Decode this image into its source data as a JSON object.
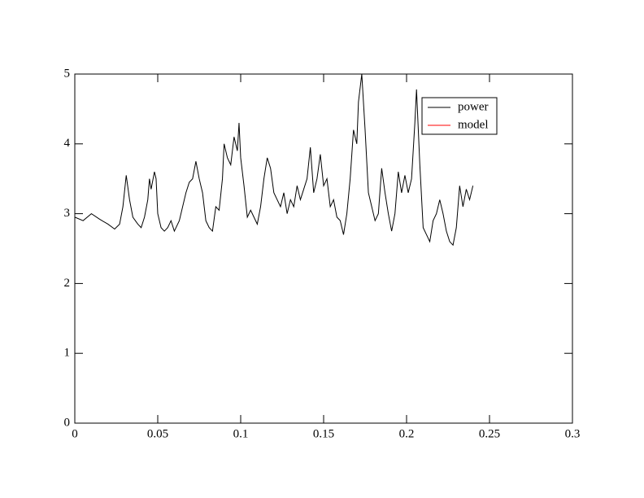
{
  "chart_data": {
    "type": "line",
    "x": [
      0,
      0.005,
      0.01,
      0.015,
      0.02,
      0.024,
      0.027,
      0.029,
      0.031,
      0.033,
      0.035,
      0.038,
      0.04,
      0.042,
      0.044,
      0.045,
      0.046,
      0.048,
      0.049,
      0.05,
      0.052,
      0.054,
      0.056,
      0.058,
      0.06,
      0.063,
      0.065,
      0.067,
      0.069,
      0.071,
      0.073,
      0.075,
      0.077,
      0.079,
      0.081,
      0.083,
      0.085,
      0.087,
      0.089,
      0.09,
      0.092,
      0.094,
      0.096,
      0.098,
      0.099,
      0.1,
      0.102,
      0.104,
      0.106,
      0.108,
      0.11,
      0.112,
      0.114,
      0.116,
      0.118,
      0.12,
      0.122,
      0.124,
      0.126,
      0.128,
      0.13,
      0.132,
      0.134,
      0.136,
      0.138,
      0.14,
      0.142,
      0.144,
      0.146,
      0.148,
      0.15,
      0.152,
      0.154,
      0.156,
      0.158,
      0.16,
      0.162,
      0.164,
      0.166,
      0.168,
      0.17,
      0.171,
      0.173,
      0.175,
      0.177,
      0.179,
      0.181,
      0.183,
      0.185,
      0.187,
      0.189,
      0.191,
      0.193,
      0.195,
      0.197,
      0.199,
      0.201,
      0.203,
      0.205,
      0.206,
      0.208,
      0.21,
      0.212,
      0.214,
      0.216,
      0.218,
      0.22,
      0.222,
      0.224,
      0.226,
      0.228,
      0.23,
      0.232,
      0.234,
      0.236,
      0.238,
      0.24
    ],
    "series": [
      {
        "name": "power",
        "color": "#000000",
        "values": [
          2.95,
          2.9,
          3.0,
          2.92,
          2.85,
          2.78,
          2.85,
          3.1,
          3.55,
          3.2,
          2.95,
          2.85,
          2.8,
          2.95,
          3.2,
          3.5,
          3.35,
          3.6,
          3.5,
          3.0,
          2.8,
          2.75,
          2.8,
          2.9,
          2.75,
          2.9,
          3.1,
          3.3,
          3.45,
          3.5,
          3.75,
          3.5,
          3.3,
          2.9,
          2.8,
          2.75,
          3.1,
          3.05,
          3.5,
          4.0,
          3.8,
          3.7,
          4.1,
          3.9,
          4.3,
          3.8,
          3.4,
          2.95,
          3.05,
          2.95,
          2.85,
          3.1,
          3.5,
          3.8,
          3.65,
          3.3,
          3.2,
          3.1,
          3.3,
          3.0,
          3.2,
          3.1,
          3.4,
          3.2,
          3.35,
          3.5,
          3.95,
          3.3,
          3.5,
          3.85,
          3.4,
          3.5,
          3.1,
          3.2,
          2.95,
          2.9,
          2.7,
          3.0,
          3.5,
          4.2,
          4.0,
          4.6,
          5.0,
          4.2,
          3.3,
          3.1,
          2.9,
          3.0,
          3.65,
          3.3,
          3.0,
          2.75,
          3.0,
          3.6,
          3.3,
          3.55,
          3.3,
          3.5,
          4.3,
          4.78,
          3.7,
          2.8,
          2.7,
          2.6,
          2.9,
          3.0,
          3.2,
          3.0,
          2.75,
          2.6,
          2.55,
          2.8,
          3.4,
          3.1,
          3.35,
          3.2,
          3.4
        ]
      },
      {
        "name": "model",
        "color": "#ff0000",
        "values": [
          null,
          null,
          null,
          null,
          null,
          null,
          null,
          null,
          null,
          null,
          null,
          null,
          null,
          null,
          null,
          null,
          null,
          null,
          null,
          null,
          null,
          null,
          null,
          null,
          null,
          null,
          null,
          null,
          null,
          null,
          null,
          null,
          null,
          null,
          null,
          null,
          null,
          null,
          null,
          null,
          null,
          null,
          null,
          null,
          null,
          null,
          null,
          null,
          null,
          null,
          null,
          null,
          null,
          null,
          null,
          null,
          null,
          null,
          null,
          null,
          null,
          null,
          null,
          null,
          null,
          null,
          null,
          null,
          null,
          null,
          null,
          null,
          null,
          null,
          null,
          null,
          null,
          null,
          null,
          null,
          null,
          null,
          null,
          null,
          null,
          null,
          null,
          null,
          null,
          null,
          null,
          null,
          null,
          null,
          null,
          null,
          null,
          null,
          null,
          null,
          null,
          null,
          null,
          null,
          null,
          null,
          null,
          null,
          null,
          null,
          null,
          null,
          null,
          null,
          null,
          null,
          null
        ]
      }
    ],
    "xlim": [
      0,
      0.3
    ],
    "xticks": [
      0,
      0.05,
      0.1,
      0.15,
      0.2,
      0.25,
      0.3
    ],
    "ylim": [
      0,
      5
    ],
    "yticks": [
      0,
      1,
      2,
      3,
      4,
      5
    ],
    "legend": "upper right"
  }
}
